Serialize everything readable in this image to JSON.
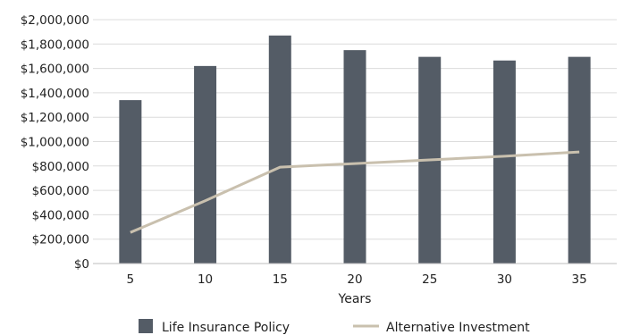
{
  "chart_data": {
    "type": "bar",
    "title": "",
    "xlabel": "Years",
    "ylabel": "",
    "categories": [
      "5",
      "10",
      "15",
      "20",
      "25",
      "30",
      "35"
    ],
    "yticks": [
      "$0",
      "$200,000",
      "$400,000",
      "$600,000",
      "$800,000",
      "$1,000,000",
      "$1,200,000",
      "$1,400,000",
      "$1,600,000",
      "$1,800,000",
      "$2,000,000"
    ],
    "ylim": [
      0,
      2000000
    ],
    "grid": true,
    "legend_position": "bottom",
    "series": [
      {
        "name": "Life Insurance Policy",
        "type": "bar",
        "color": "#545c66",
        "values": [
          1340000,
          1620000,
          1870000,
          1750000,
          1695000,
          1665000,
          1695000
        ]
      },
      {
        "name": "Alternative Investment",
        "type": "line",
        "color": "#c9c0ae",
        "values": [
          255000,
          515000,
          790000,
          820000,
          850000,
          880000,
          915000
        ]
      }
    ]
  }
}
